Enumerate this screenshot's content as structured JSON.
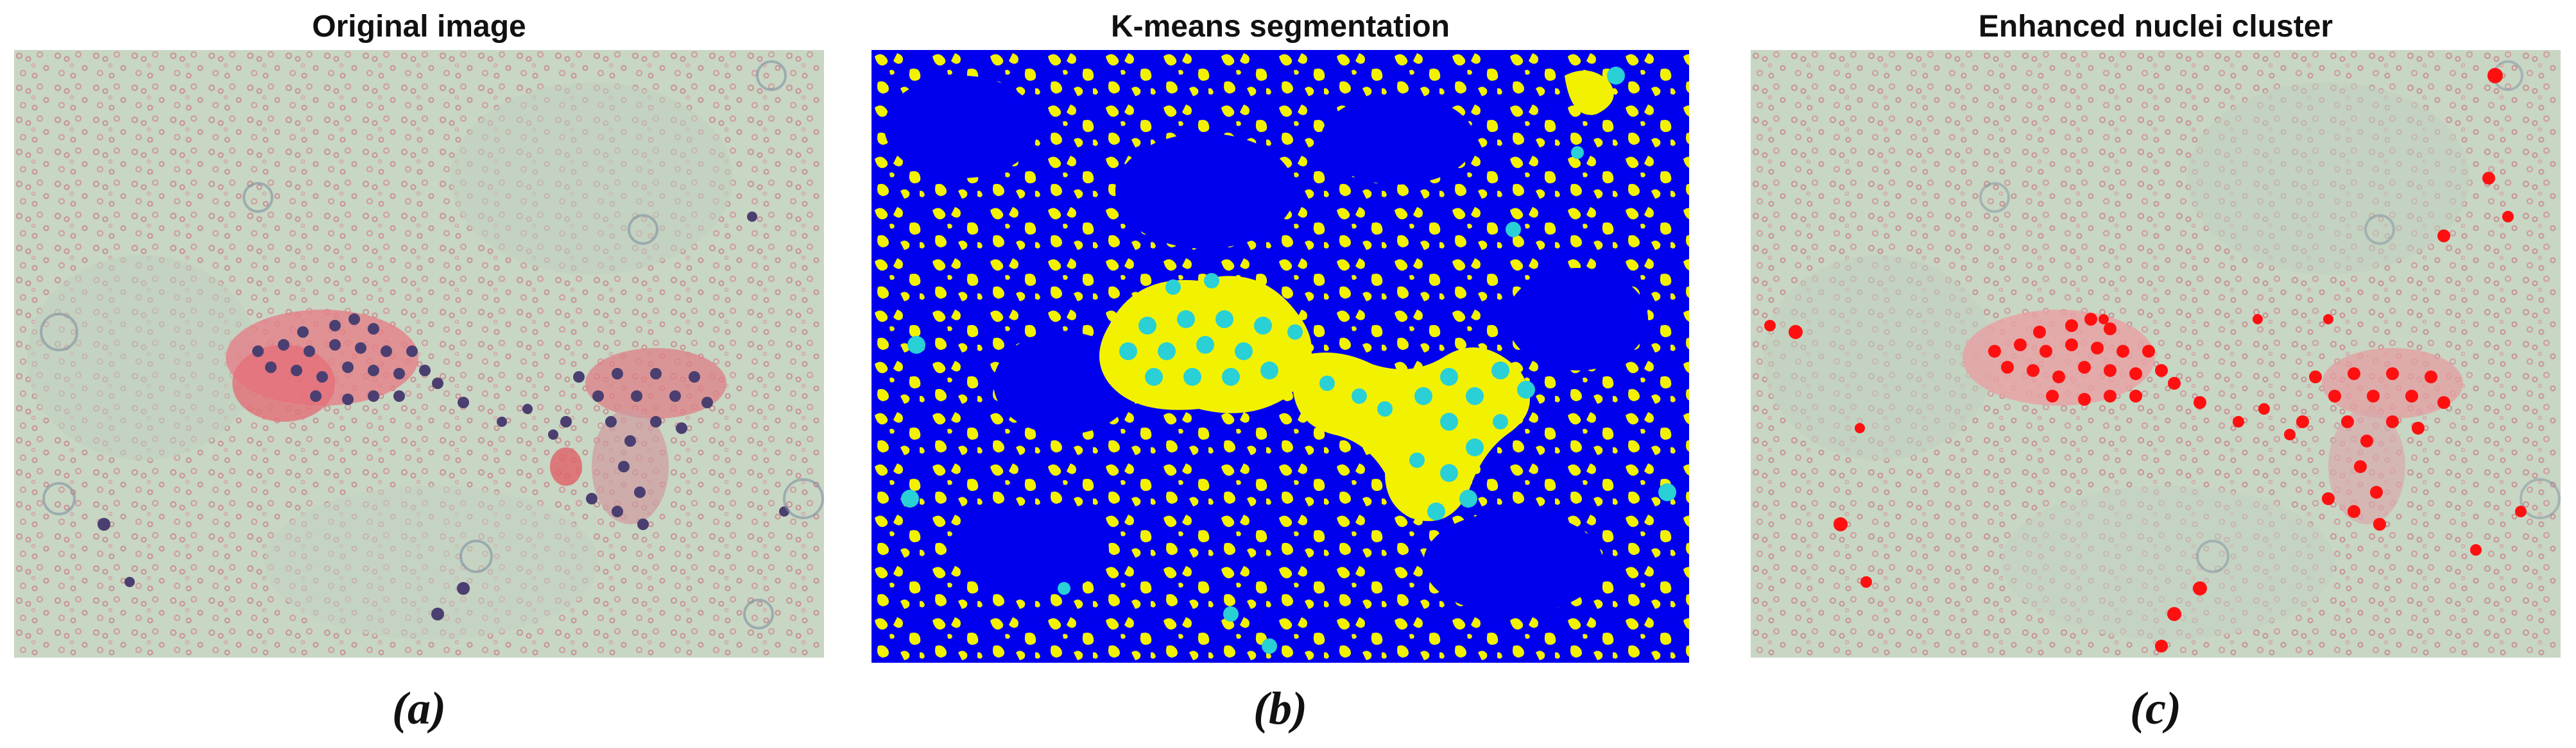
{
  "figure": {
    "panels": [
      {
        "title": "Original image",
        "caption": "(a)",
        "image_description": "Microscopy image of cell cluster with purple nuclei on pink cytoplasm, pale green background with red blood cells"
      },
      {
        "title": "K-means segmentation",
        "caption": "(b)",
        "image_description": "Segmentation map: blue background, yellow regions, cyan nuclei"
      },
      {
        "title": "Enhanced nuclei cluster",
        "caption": "(c)",
        "image_description": "Original image with nuclei highlighted in bright red"
      }
    ],
    "colors": {
      "micro_background": "#c9d6c6",
      "micro_rbc": "#c98f93",
      "micro_nucleus": "#4a3f70",
      "micro_cytoplasm": "#e07a80",
      "seg_background": "#0000ee",
      "seg_cluster": "#f2f200",
      "seg_nucleus": "#29d0d6",
      "highlight_nucleus": "#ff1010"
    }
  }
}
